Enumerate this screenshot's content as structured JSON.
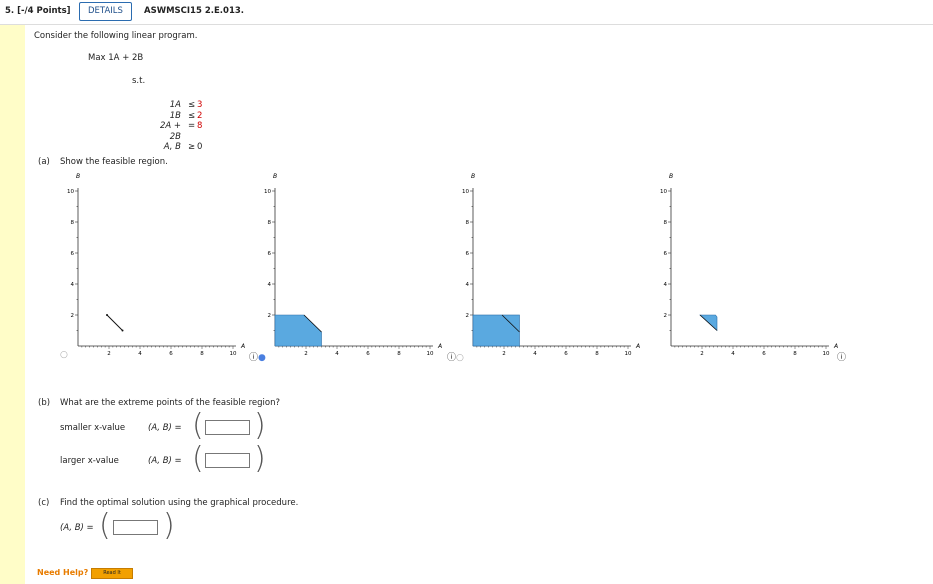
{
  "header": {
    "points": "5. [-/4 Points]",
    "details_button": "DETAILS",
    "problem_code": "ASWMSCI15 2.E.013."
  },
  "problem": {
    "intro": "Consider the following linear program.",
    "objective": "Max 1A + 2B",
    "st": "s.t.",
    "constraints": [
      {
        "lhs": "1A",
        "op": "≤",
        "rhs": "3"
      },
      {
        "lhs": "1B",
        "op": "≤",
        "rhs": "2"
      },
      {
        "lhs": "2A + 2B",
        "op": "=",
        "rhs": "8"
      },
      {
        "lhs": "A, B",
        "op": "≥",
        "rhs": "0"
      }
    ]
  },
  "part_a": {
    "label": "(a)",
    "text": "Show the feasible region."
  },
  "graphs": {
    "y_label": "B",
    "x_label": "A",
    "y_ticks": [
      "2",
      "4",
      "6",
      "8",
      "10"
    ],
    "x_ticks": [
      "2",
      "4",
      "6",
      "8",
      "10"
    ]
  },
  "part_b": {
    "label": "(b)",
    "text": "What are the extreme points of the feasible region?",
    "rows": [
      {
        "label": "smaller x-value",
        "var": "(A, B) =",
        "value": ""
      },
      {
        "label": "larger x-value",
        "var": "(A, B) =",
        "value": ""
      }
    ]
  },
  "part_c": {
    "label": "(c)",
    "text": "Find the optimal solution using the graphical procedure.",
    "var": "(A, B) =",
    "value": ""
  },
  "help": {
    "need_help": "Need Help?",
    "read_it": "Read It"
  },
  "colors": {
    "feasible_fill": "#5aa9e0",
    "sidebar": "#fffdc8",
    "need_help": "#e87c00"
  },
  "icons": {
    "info": "info-icon",
    "radio": "radio-icon"
  }
}
